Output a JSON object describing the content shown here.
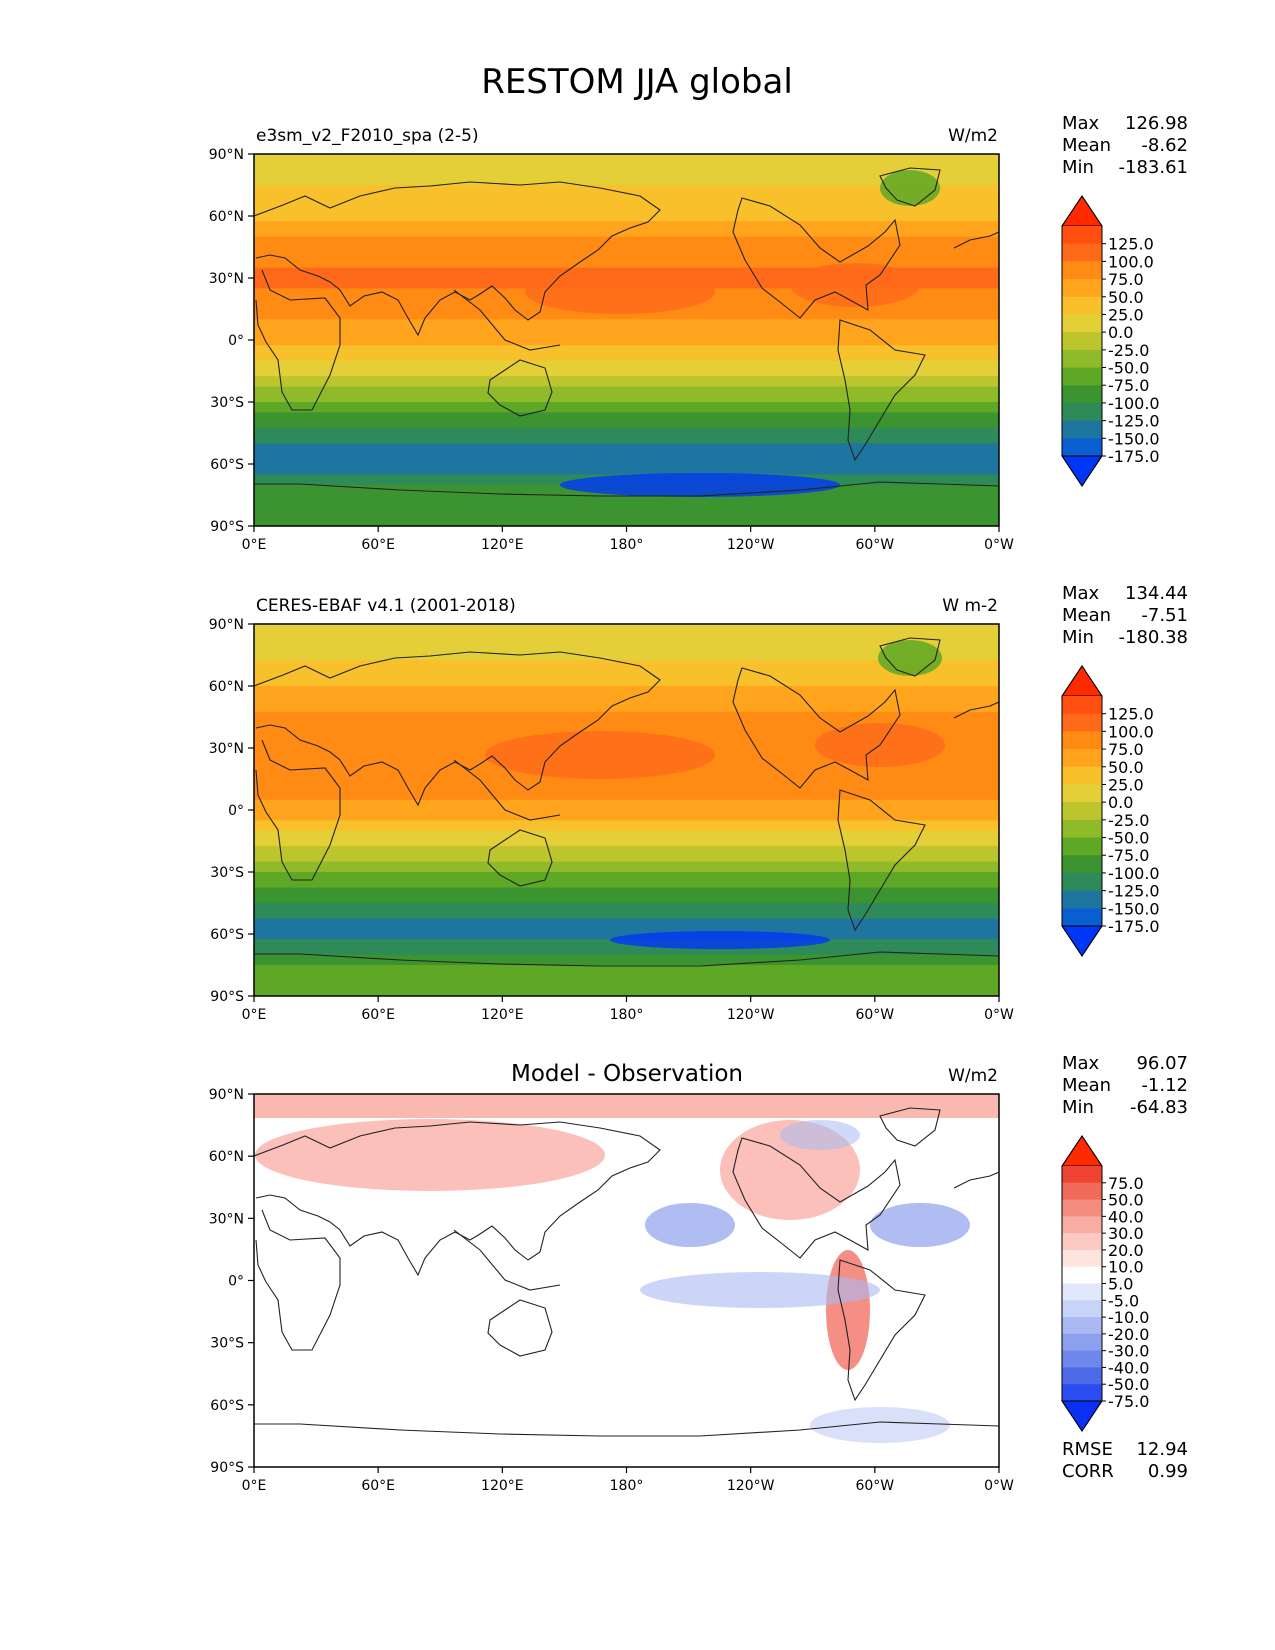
{
  "figure": {
    "title": "RESTOM JJA global"
  },
  "chart_data": [
    {
      "type": "heatmap",
      "panel": "model",
      "label": "e3sm_v2_F2010_spa (2-5)",
      "units": "W/m2",
      "stats": [
        {
          "name": "Max",
          "value": "126.98"
        },
        {
          "name": "Mean",
          "value": "-8.62"
        },
        {
          "name": "Min",
          "value": "-183.61"
        }
      ],
      "x_ticks": [
        "0°E",
        "60°E",
        "120°E",
        "180°",
        "120°W",
        "60°W",
        "0°W"
      ],
      "y_ticks": [
        "90°N",
        "60°N",
        "30°N",
        "0°",
        "30°S",
        "60°S",
        "90°S"
      ],
      "xlim": [
        0,
        360
      ],
      "ylim": [
        -90,
        90
      ],
      "colorbar": {
        "levels": [
          "125.0",
          "100.0",
          "75.0",
          "50.0",
          "25.0",
          "0.0",
          "-25.0",
          "-50.0",
          "-75.0",
          "-100.0",
          "-125.0",
          "-150.0",
          "-175.0"
        ],
        "colors": [
          "#ff2a00",
          "#ff4f10",
          "#ff6a1a",
          "#ff8a14",
          "#ffa41c",
          "#f8c02a",
          "#e5cf38",
          "#bcc42e",
          "#8fba2a",
          "#5ea826",
          "#3c9430",
          "#2f8a5a",
          "#1e76a0",
          "#0a5fd0",
          "#0036f8"
        ]
      },
      "zonal_profile": {
        "lat": [
          90,
          75,
          60,
          45,
          30,
          15,
          0,
          -15,
          -30,
          -45,
          -55,
          -65,
          -75,
          -90
        ],
        "value": [
          -10,
          0,
          20,
          65,
          80,
          60,
          35,
          -20,
          -80,
          -130,
          -165,
          -150,
          -110,
          -110
        ]
      }
    },
    {
      "type": "heatmap",
      "panel": "observation",
      "label": "CERES-EBAF v4.1 (2001-2018)",
      "units": "W m-2",
      "stats": [
        {
          "name": "Max",
          "value": "134.44"
        },
        {
          "name": "Mean",
          "value": "-7.51"
        },
        {
          "name": "Min",
          "value": "-180.38"
        }
      ],
      "x_ticks": [
        "0°E",
        "60°E",
        "120°E",
        "180°",
        "120°W",
        "60°W",
        "0°W"
      ],
      "y_ticks": [
        "90°N",
        "60°N",
        "30°N",
        "0°",
        "30°S",
        "60°S",
        "90°S"
      ],
      "xlim": [
        0,
        360
      ],
      "ylim": [
        -90,
        90
      ],
      "colorbar": {
        "levels": [
          "125.0",
          "100.0",
          "75.0",
          "50.0",
          "25.0",
          "0.0",
          "-25.0",
          "-50.0",
          "-75.0",
          "-100.0",
          "-125.0",
          "-150.0",
          "-175.0"
        ],
        "colors": [
          "#ff2a00",
          "#ff4f10",
          "#ff6a1a",
          "#ff8a14",
          "#ffa41c",
          "#f8c02a",
          "#e5cf38",
          "#bcc42e",
          "#8fba2a",
          "#5ea826",
          "#3c9430",
          "#2f8a5a",
          "#1e76a0",
          "#0a5fd0",
          "#0036f8"
        ]
      },
      "zonal_profile": {
        "lat": [
          90,
          75,
          60,
          45,
          30,
          15,
          0,
          -15,
          -30,
          -45,
          -55,
          -65,
          -75,
          -90
        ],
        "value": [
          -25,
          -5,
          25,
          55,
          75,
          70,
          40,
          -15,
          -75,
          -125,
          -160,
          -145,
          -100,
          -100
        ]
      }
    },
    {
      "type": "heatmap",
      "panel": "difference",
      "label": "Model - Observation",
      "units": "W/m2",
      "stats": [
        {
          "name": "Max",
          "value": "96.07"
        },
        {
          "name": "Mean",
          "value": "-1.12"
        },
        {
          "name": "Min",
          "value": "-64.83"
        }
      ],
      "extra_stats": [
        {
          "name": "RMSE",
          "value": "12.94"
        },
        {
          "name": "CORR",
          "value": "0.99"
        }
      ],
      "x_ticks": [
        "0°E",
        "60°E",
        "120°E",
        "180°",
        "120°W",
        "60°W",
        "0°W"
      ],
      "y_ticks": [
        "90°N",
        "60°N",
        "30°N",
        "0°",
        "30°S",
        "60°S",
        "90°S"
      ],
      "xlim": [
        0,
        360
      ],
      "ylim": [
        -90,
        90
      ],
      "colorbar": {
        "levels": [
          "75.0",
          "50.0",
          "40.0",
          "30.0",
          "20.0",
          "10.0",
          "5.0",
          "-5.0",
          "-10.0",
          "-20.0",
          "-30.0",
          "-40.0",
          "-50.0",
          "-75.0"
        ],
        "colors": [
          "#ff2a00",
          "#ee4433",
          "#f26a5a",
          "#f58c80",
          "#f8aca2",
          "#fbcac3",
          "#fde4df",
          "#ffffff",
          "#e2e8fb",
          "#c8d3f8",
          "#aab9f3",
          "#8ca0ee",
          "#6e87ea",
          "#4c6ae8",
          "#2a4df0",
          "#0a2ff5"
        ]
      }
    }
  ]
}
